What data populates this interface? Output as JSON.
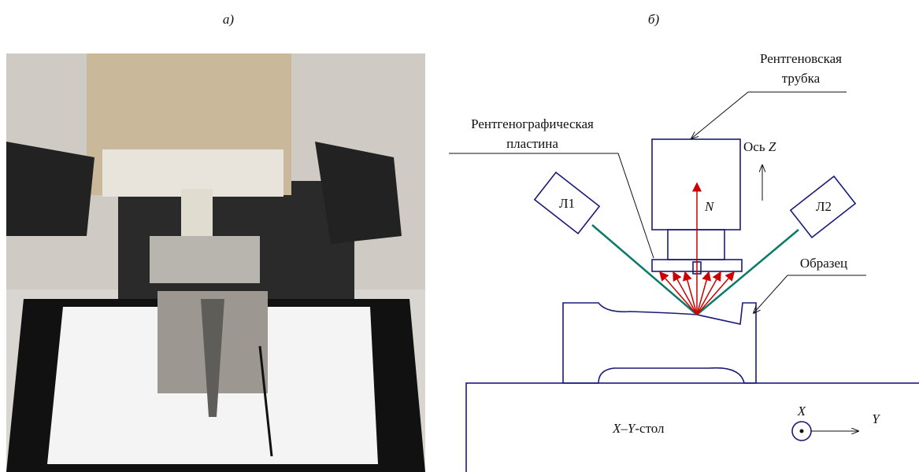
{
  "panel_a": {
    "label": "а)"
  },
  "panel_b": {
    "label": "б)",
    "tube_label": [
      "Рентгеновская",
      "трубка"
    ],
    "plate_label": [
      "Рентгенографическая",
      "пластина"
    ],
    "axis_label": {
      "prefix": "Ось",
      "var": "Z"
    },
    "lamp1": "Л1",
    "lamp2": "Л2",
    "normal": "N",
    "sample_label": "Образец",
    "table_label": [
      "X",
      "–",
      "Y",
      "-стол"
    ],
    "x_axis": "X",
    "y_axis": "Y"
  }
}
